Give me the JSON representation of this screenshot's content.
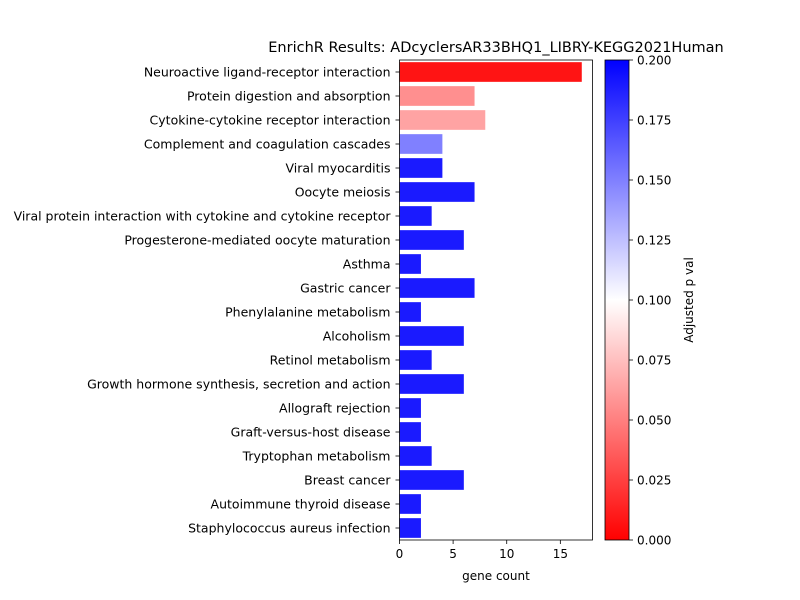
{
  "chart_data": {
    "type": "bar",
    "orientation": "horizontal",
    "title": "EnrichR Results: ADcyclersAR33BHQ1_LIBRY-KEGG2021Human",
    "xlabel": "gene count",
    "ylabel": "",
    "xlim": [
      0,
      18
    ],
    "xticks": [
      "0",
      "5",
      "10",
      "15"
    ],
    "categories": [
      "Neuroactive ligand-receptor interaction",
      "Protein digestion and absorption",
      "Cytokine-cytokine receptor interaction",
      "Complement and coagulation cascades",
      "Viral myocarditis",
      "Oocyte meiosis",
      "Viral protein interaction with cytokine and cytokine receptor",
      "Progesterone-mediated oocyte maturation",
      "Asthma",
      "Gastric cancer",
      "Phenylalanine metabolism",
      "Alcoholism",
      "Retinol metabolism",
      "Growth hormone synthesis, secretion and action",
      "Allograft rejection",
      "Graft-versus-host disease",
      "Tryptophan metabolism",
      "Breast cancer",
      "Autoimmune thyroid disease",
      "Staphylococcus aureus infection"
    ],
    "values": [
      17,
      7,
      8,
      4,
      4,
      7,
      3,
      6,
      2,
      7,
      2,
      6,
      3,
      6,
      2,
      2,
      3,
      6,
      2,
      2
    ],
    "adjusted_p": [
      0.008,
      0.056,
      0.064,
      0.15,
      0.19,
      0.19,
      0.19,
      0.19,
      0.19,
      0.19,
      0.19,
      0.19,
      0.19,
      0.19,
      0.19,
      0.19,
      0.19,
      0.19,
      0.19,
      0.19
    ],
    "colorbar": {
      "label": "Adjusted p val",
      "range": [
        0,
        0.2
      ],
      "ticks": [
        "0.000",
        "0.025",
        "0.050",
        "0.075",
        "0.100",
        "0.125",
        "0.150",
        "0.175",
        "0.200"
      ],
      "colormap": "bwr_r",
      "colors": [
        "#ff0000",
        "#ffffff",
        "#0000ff"
      ]
    },
    "grid": false,
    "legend": "none"
  }
}
